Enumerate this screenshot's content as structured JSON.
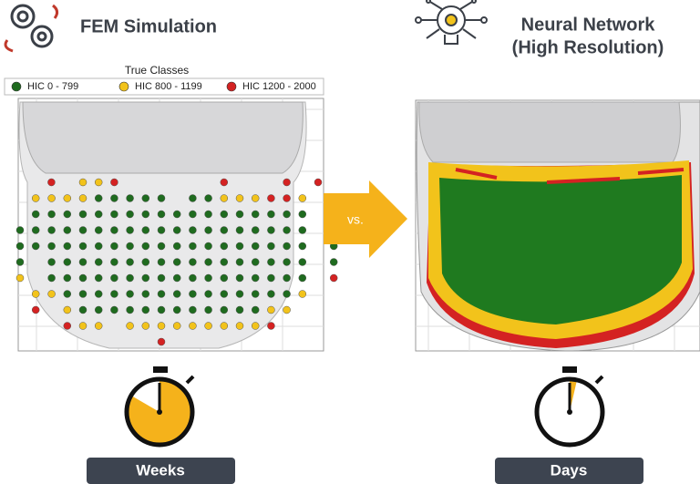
{
  "left": {
    "title": "FEM Simulation",
    "legend_title": "True Classes",
    "legend": [
      {
        "label": "HIC 0 - 799",
        "color": "#1f6b1f"
      },
      {
        "label": "HIC 800 - 1199",
        "color": "#f2c31b"
      },
      {
        "label": "HIC 1200 - 2000",
        "color": "#d42222"
      }
    ],
    "time_label": "Weeks"
  },
  "comparison": "vs.",
  "right": {
    "title_lines": [
      "Neural Network",
      "(High Resolution)"
    ],
    "time_label": "Days"
  }
}
